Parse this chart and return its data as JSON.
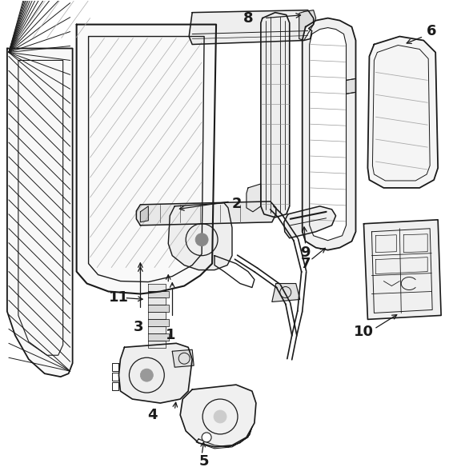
{
  "title": "",
  "background_color": "#ffffff",
  "line_color": "#1a1a1a",
  "fig_width": 5.76,
  "fig_height": 5.89,
  "dpi": 100,
  "xlim": [
    0,
    576
  ],
  "ylim": [
    0,
    589
  ]
}
